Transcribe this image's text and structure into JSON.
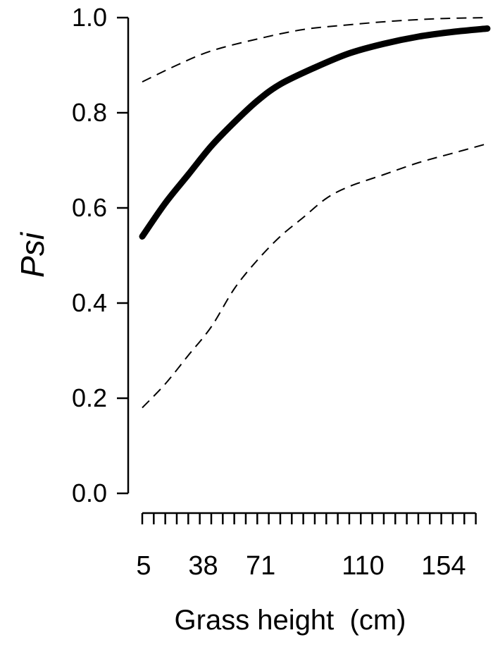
{
  "chart_data": {
    "type": "line",
    "title": "",
    "xlabel": "Grass height  (cm)",
    "ylabel": "Psi",
    "ylim": [
      0,
      1
    ],
    "yticks": [
      "0.0",
      "0.2",
      "0.4",
      "0.6",
      "0.8",
      "1.0"
    ],
    "x_axis": {
      "minor_tick_count": 30,
      "tick_labels": [
        {
          "label": "5",
          "pos": 0
        },
        {
          "label": "38",
          "pos": 5.3
        },
        {
          "label": "71",
          "pos": 10.3
        },
        {
          "label": "110",
          "pos": 19.2
        },
        {
          "label": "154",
          "pos": 26.2
        }
      ],
      "range": [
        0,
        30
      ]
    },
    "grid": false,
    "series": [
      {
        "style": "solid-thick",
        "x": [
          0,
          2,
          4,
          6,
          8,
          10,
          12,
          15,
          18,
          21,
          24,
          27,
          30
        ],
        "y": [
          0.54,
          0.61,
          0.67,
          0.73,
          0.78,
          0.825,
          0.86,
          0.895,
          0.925,
          0.945,
          0.96,
          0.97,
          0.977
        ]
      },
      {
        "style": "dashed",
        "x": [
          0,
          3,
          6,
          10,
          14,
          18,
          22,
          26,
          30
        ],
        "y": [
          0.865,
          0.9,
          0.93,
          0.955,
          0.975,
          0.985,
          0.993,
          0.998,
          1.0
        ]
      },
      {
        "style": "dashed",
        "x": [
          0,
          2,
          4,
          6,
          8,
          10,
          12,
          14,
          16,
          18,
          21,
          24,
          27,
          30
        ],
        "y": [
          0.18,
          0.23,
          0.29,
          0.35,
          0.43,
          0.49,
          0.54,
          0.58,
          0.62,
          0.645,
          0.67,
          0.695,
          0.715,
          0.735
        ]
      }
    ],
    "colors": {
      "line": "#000000",
      "background": "#ffffff"
    }
  }
}
